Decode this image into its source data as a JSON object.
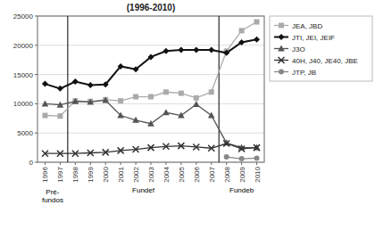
{
  "chart_data": {
    "type": "line",
    "title": "(1996-2010)",
    "x": [
      1996,
      1997,
      1998,
      1999,
      2000,
      2001,
      2002,
      2003,
      2004,
      2005,
      2006,
      2007,
      2008,
      2009,
      2010
    ],
    "xlim": [
      1995.5,
      2010.5
    ],
    "xticks": [
      1996,
      1997,
      1998,
      1999,
      2000,
      2001,
      2002,
      2003,
      2004,
      2005,
      2006,
      2007,
      2008,
      2009,
      2010
    ],
    "ylim": [
      0,
      25000
    ],
    "yticks": [
      0,
      5000,
      10000,
      15000,
      20000,
      25000
    ],
    "grid": true,
    "legend": "right",
    "series": [
      {
        "name": "JEA, JBD",
        "color": "#aaaaaa",
        "marker": "square",
        "values": [
          8000,
          7900,
          10500,
          10400,
          10700,
          10500,
          11200,
          11200,
          12000,
          11800,
          11000,
          12000,
          19000,
          22500,
          24000
        ]
      },
      {
        "name": "JTI, JEI, JEIF",
        "color": "#111111",
        "marker": "diamond",
        "values": [
          13400,
          12600,
          13800,
          13200,
          13300,
          16400,
          15900,
          18000,
          19000,
          19200,
          19200,
          19200,
          18700,
          20500,
          21000
        ]
      },
      {
        "name": "J3O",
        "color": "#555555",
        "marker": "triangle",
        "values": [
          10000,
          9800,
          10400,
          10300,
          10600,
          8000,
          7200,
          6600,
          8500,
          8000,
          9900,
          8000,
          3300,
          2500,
          2500
        ]
      },
      {
        "name": "40H, J40, JE40, JBE",
        "color": "#333333",
        "marker": "x",
        "values": [
          1500,
          1500,
          1500,
          1600,
          1700,
          2000,
          2200,
          2500,
          2700,
          2800,
          2600,
          2400,
          3200,
          2300,
          2500
        ]
      },
      {
        "name": "JTP, JB",
        "color": "#888888",
        "marker": "circle",
        "values": [
          null,
          null,
          null,
          null,
          null,
          null,
          null,
          null,
          null,
          null,
          null,
          null,
          900,
          600,
          700
        ]
      }
    ],
    "vlines": [
      1997.5,
      2007.5
    ],
    "annotations": [
      {
        "text": "Pré-\nfundos",
        "x": 1996.5
      },
      {
        "text": "Fundef",
        "x": 2002.5
      },
      {
        "text": "Fundeb",
        "x": 2009
      }
    ]
  }
}
